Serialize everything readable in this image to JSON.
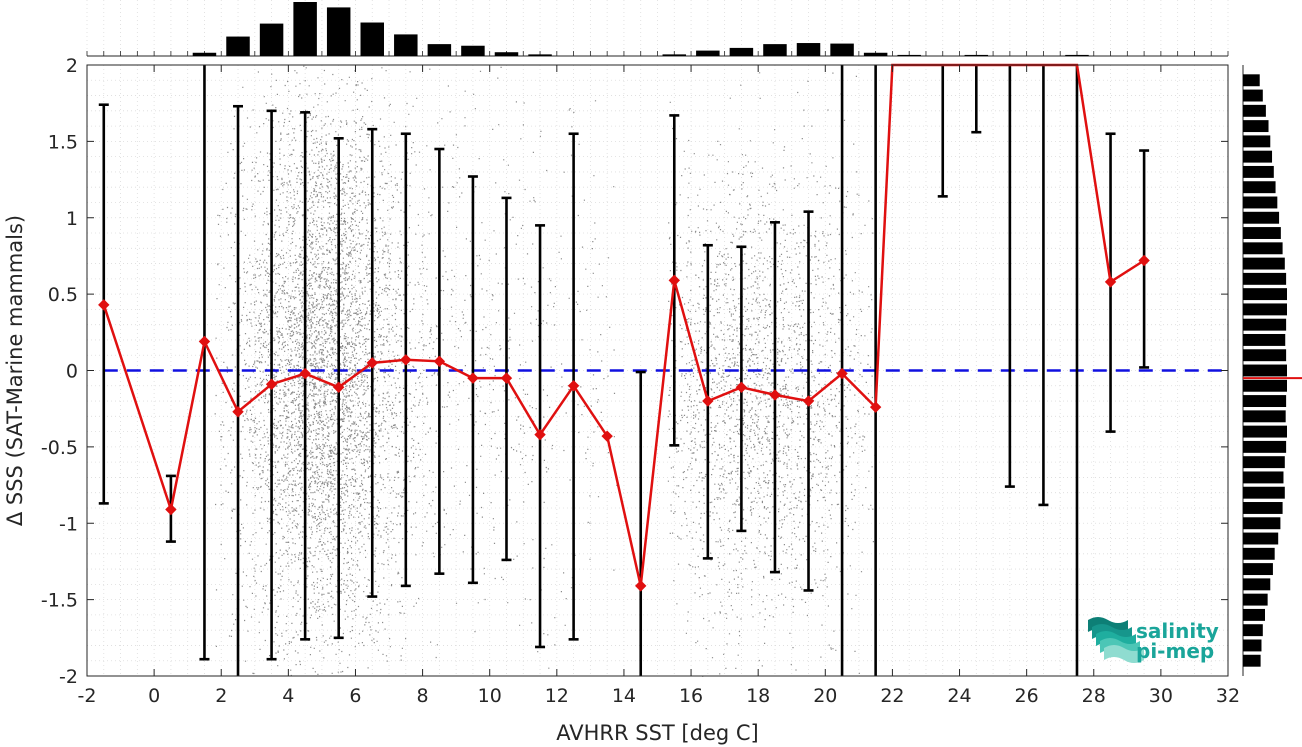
{
  "chart_data": {
    "type": "scatter",
    "xlabel": "AVHRR SST [deg C]",
    "ylabel": "Δ SSS (SAT-Marine mammals)",
    "xlim": [
      -2,
      32
    ],
    "ylim": [
      -2,
      2
    ],
    "x_ticks": [
      "-2",
      "0",
      "2",
      "4",
      "6",
      "8",
      "10",
      "12",
      "14",
      "16",
      "18",
      "20",
      "22",
      "24",
      "26",
      "28",
      "30",
      "32"
    ],
    "y_ticks": [
      "2",
      "1.5",
      "1",
      "0.5",
      "0",
      "-0.5",
      "-1",
      "-1.5",
      "-2"
    ],
    "grid": "minor dotted",
    "reference_line": {
      "y": 0,
      "color": "#1010e0",
      "style": "dashed"
    },
    "series": [
      {
        "type": "line",
        "color": "#e01010",
        "marker": "diamond",
        "x": [
          -1.5,
          0.5,
          1.5,
          2.5,
          3.5,
          4.5,
          5.5,
          6.5,
          7.5,
          8.5,
          9.5,
          10.5,
          11.5,
          12.5,
          13.5,
          14.5,
          15.5,
          16.5,
          17.5,
          18.5,
          19.5,
          20.5,
          21.5,
          22.0,
          27.5,
          28.5,
          29.5
        ],
        "y": [
          0.43,
          -0.91,
          0.19,
          -0.27,
          -0.09,
          -0.02,
          -0.11,
          0.05,
          0.07,
          0.06,
          -0.05,
          -0.05,
          -0.42,
          -0.1,
          -0.43,
          -1.41,
          0.59,
          -0.2,
          -0.11,
          -0.16,
          -0.2,
          -0.02,
          -0.24,
          2.0,
          2.0,
          0.58,
          0.72
        ],
        "markers": [
          true,
          true,
          true,
          true,
          true,
          true,
          true,
          true,
          true,
          true,
          true,
          true,
          true,
          true,
          true,
          true,
          true,
          true,
          true,
          true,
          true,
          true,
          true,
          false,
          false,
          true,
          true
        ]
      }
    ],
    "error_bars": [
      {
        "x": -1.5,
        "low": -0.87,
        "high": 1.74
      },
      {
        "x": 0.5,
        "low": -1.12,
        "high": -0.69
      },
      {
        "x": 1.5,
        "low": -1.89,
        "high": 2.0
      },
      {
        "x": 2.5,
        "low": -2.0,
        "high": 1.73
      },
      {
        "x": 3.5,
        "low": -1.89,
        "high": 1.7
      },
      {
        "x": 4.5,
        "low": -1.76,
        "high": 1.69
      },
      {
        "x": 5.5,
        "low": -1.75,
        "high": 1.52
      },
      {
        "x": 6.5,
        "low": -1.48,
        "high": 1.58
      },
      {
        "x": 7.5,
        "low": -1.41,
        "high": 1.55
      },
      {
        "x": 8.5,
        "low": -1.33,
        "high": 1.45
      },
      {
        "x": 9.5,
        "low": -1.39,
        "high": 1.27
      },
      {
        "x": 10.5,
        "low": -1.24,
        "high": 1.13
      },
      {
        "x": 11.5,
        "low": -1.81,
        "high": 0.95
      },
      {
        "x": 12.5,
        "low": -1.76,
        "high": 1.55
      },
      {
        "x": 14.5,
        "low": -2.0,
        "high": -0.01
      },
      {
        "x": 15.5,
        "low": -0.49,
        "high": 1.67
      },
      {
        "x": 16.5,
        "low": -1.23,
        "high": 0.82
      },
      {
        "x": 17.5,
        "low": -1.05,
        "high": 0.81
      },
      {
        "x": 18.5,
        "low": -1.32,
        "high": 0.97
      },
      {
        "x": 19.5,
        "low": -1.44,
        "high": 1.04
      },
      {
        "x": 20.5,
        "low": -2.0,
        "high": 2.0
      },
      {
        "x": 21.5,
        "low": -2.0,
        "high": 2.0
      },
      {
        "x": 23.5,
        "low": 1.14,
        "high": 2.0
      },
      {
        "x": 24.5,
        "low": 1.56,
        "high": 2.0
      },
      {
        "x": 25.5,
        "low": -0.76,
        "high": 2.0
      },
      {
        "x": 26.5,
        "low": -0.88,
        "high": 2.0
      },
      {
        "x": 27.5,
        "low": -2.0,
        "high": 2.0
      },
      {
        "x": 28.5,
        "low": -0.4,
        "high": 1.55
      },
      {
        "x": 29.5,
        "low": 0.02,
        "high": 1.44
      }
    ],
    "scatter_density": {
      "color": "#8c8c8c",
      "note_free": true,
      "clusters": [
        {
          "x_center": 5.0,
          "x_spread": 1.3,
          "y_center": 0.0,
          "y_spread": 0.9,
          "weight": 0.62
        },
        {
          "x_center": 18.0,
          "x_spread": 1.8,
          "y_center": -0.15,
          "y_spread": 0.75,
          "weight": 0.3
        },
        {
          "x_center": 9.5,
          "x_spread": 2.5,
          "y_center": 0.0,
          "y_spread": 0.9,
          "weight": 0.08
        }
      ],
      "x_range": [
        1.8,
        21.5
      ]
    },
    "top_histogram": {
      "bin_centers": [
        1.5,
        2.5,
        3.5,
        4.5,
        5.5,
        6.5,
        7.5,
        8.5,
        9.5,
        10.5,
        11.5,
        15.5,
        16.5,
        17.5,
        18.5,
        19.5,
        20.5,
        21.5,
        22.5,
        24.5,
        27.5
      ],
      "values": [
        0.06,
        0.36,
        0.6,
        1.0,
        0.9,
        0.62,
        0.4,
        0.22,
        0.19,
        0.07,
        0.03,
        0.03,
        0.1,
        0.15,
        0.22,
        0.24,
        0.23,
        0.06,
        0.02,
        0.02,
        0.02
      ]
    },
    "right_histogram": {
      "y_centers": [
        1.9,
        1.8,
        1.7,
        1.6,
        1.5,
        1.4,
        1.3,
        1.2,
        1.1,
        1.0,
        0.9,
        0.8,
        0.7,
        0.6,
        0.5,
        0.4,
        0.3,
        0.2,
        0.1,
        0.0,
        -0.1,
        -0.2,
        -0.3,
        -0.4,
        -0.5,
        -0.6,
        -0.7,
        -0.8,
        -0.9,
        -1.0,
        -1.1,
        -1.2,
        -1.3,
        -1.4,
        -1.5,
        -1.6,
        -1.7,
        -1.8,
        -1.9
      ],
      "values": [
        0.38,
        0.45,
        0.52,
        0.58,
        0.62,
        0.66,
        0.7,
        0.74,
        0.78,
        0.82,
        0.86,
        0.9,
        0.95,
        0.98,
        1.0,
        1.0,
        0.98,
        0.96,
        0.98,
        1.0,
        1.0,
        0.98,
        0.97,
        1.0,
        0.98,
        0.95,
        0.92,
        0.95,
        0.9,
        0.85,
        0.8,
        0.72,
        0.68,
        0.62,
        0.56,
        0.5,
        0.45,
        0.42,
        0.4
      ],
      "median_marker_y": -0.05,
      "median_marker_color": "#e01010"
    }
  },
  "logo": {
    "line1": "salinity",
    "line2": "pi-mep",
    "color": "#1aa59a"
  }
}
